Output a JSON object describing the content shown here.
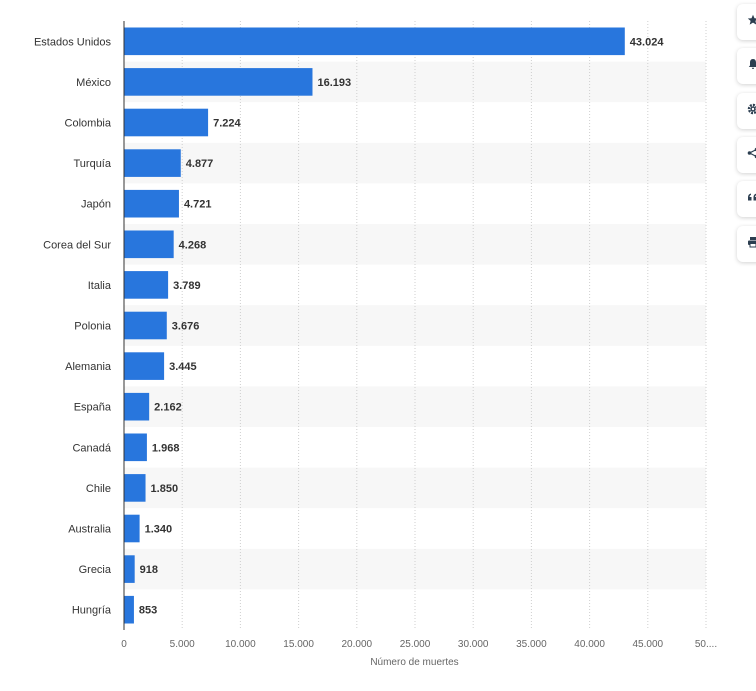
{
  "chart_data": {
    "type": "bar",
    "orientation": "horizontal",
    "categories": [
      "Estados Unidos",
      "México",
      "Colombia",
      "Turquía",
      "Japón",
      "Corea del Sur",
      "Italia",
      "Polonia",
      "Alemania",
      "España",
      "Canadá",
      "Chile",
      "Australia",
      "Grecia",
      "Hungría"
    ],
    "values": [
      43024,
      16193,
      7224,
      4877,
      4721,
      4268,
      3789,
      3676,
      3445,
      2162,
      1968,
      1850,
      1340,
      918,
      853
    ],
    "value_labels": [
      "43.024",
      "16.193",
      "7.224",
      "4.877",
      "4.721",
      "4.268",
      "3.789",
      "3.676",
      "3.445",
      "2.162",
      "1.968",
      "1.850",
      "1.340",
      "918",
      "853"
    ],
    "xlabel": "Número de muertes",
    "ylabel": "",
    "xlim": [
      0,
      50000
    ],
    "x_ticks": [
      0,
      5000,
      10000,
      15000,
      20000,
      25000,
      30000,
      35000,
      40000,
      45000,
      50000
    ],
    "x_tick_labels": [
      "0",
      "5.000",
      "10.000",
      "15.000",
      "20.000",
      "25.000",
      "30.000",
      "35.000",
      "40.000",
      "45.000",
      "50...."
    ],
    "grid": "vertical dotted",
    "bar_color": "#2876dd",
    "stripe_color": "#f7f7f7"
  },
  "toolbar": {
    "buttons": [
      {
        "name": "favorite-button",
        "icon": "star-icon"
      },
      {
        "name": "notification-button",
        "icon": "bell-icon"
      },
      {
        "name": "settings-button",
        "icon": "gear-icon"
      },
      {
        "name": "share-button",
        "icon": "share-icon"
      },
      {
        "name": "citation-button",
        "icon": "quote-icon"
      },
      {
        "name": "print-button",
        "icon": "printer-icon"
      }
    ],
    "icon_color": "#2c3e50"
  }
}
